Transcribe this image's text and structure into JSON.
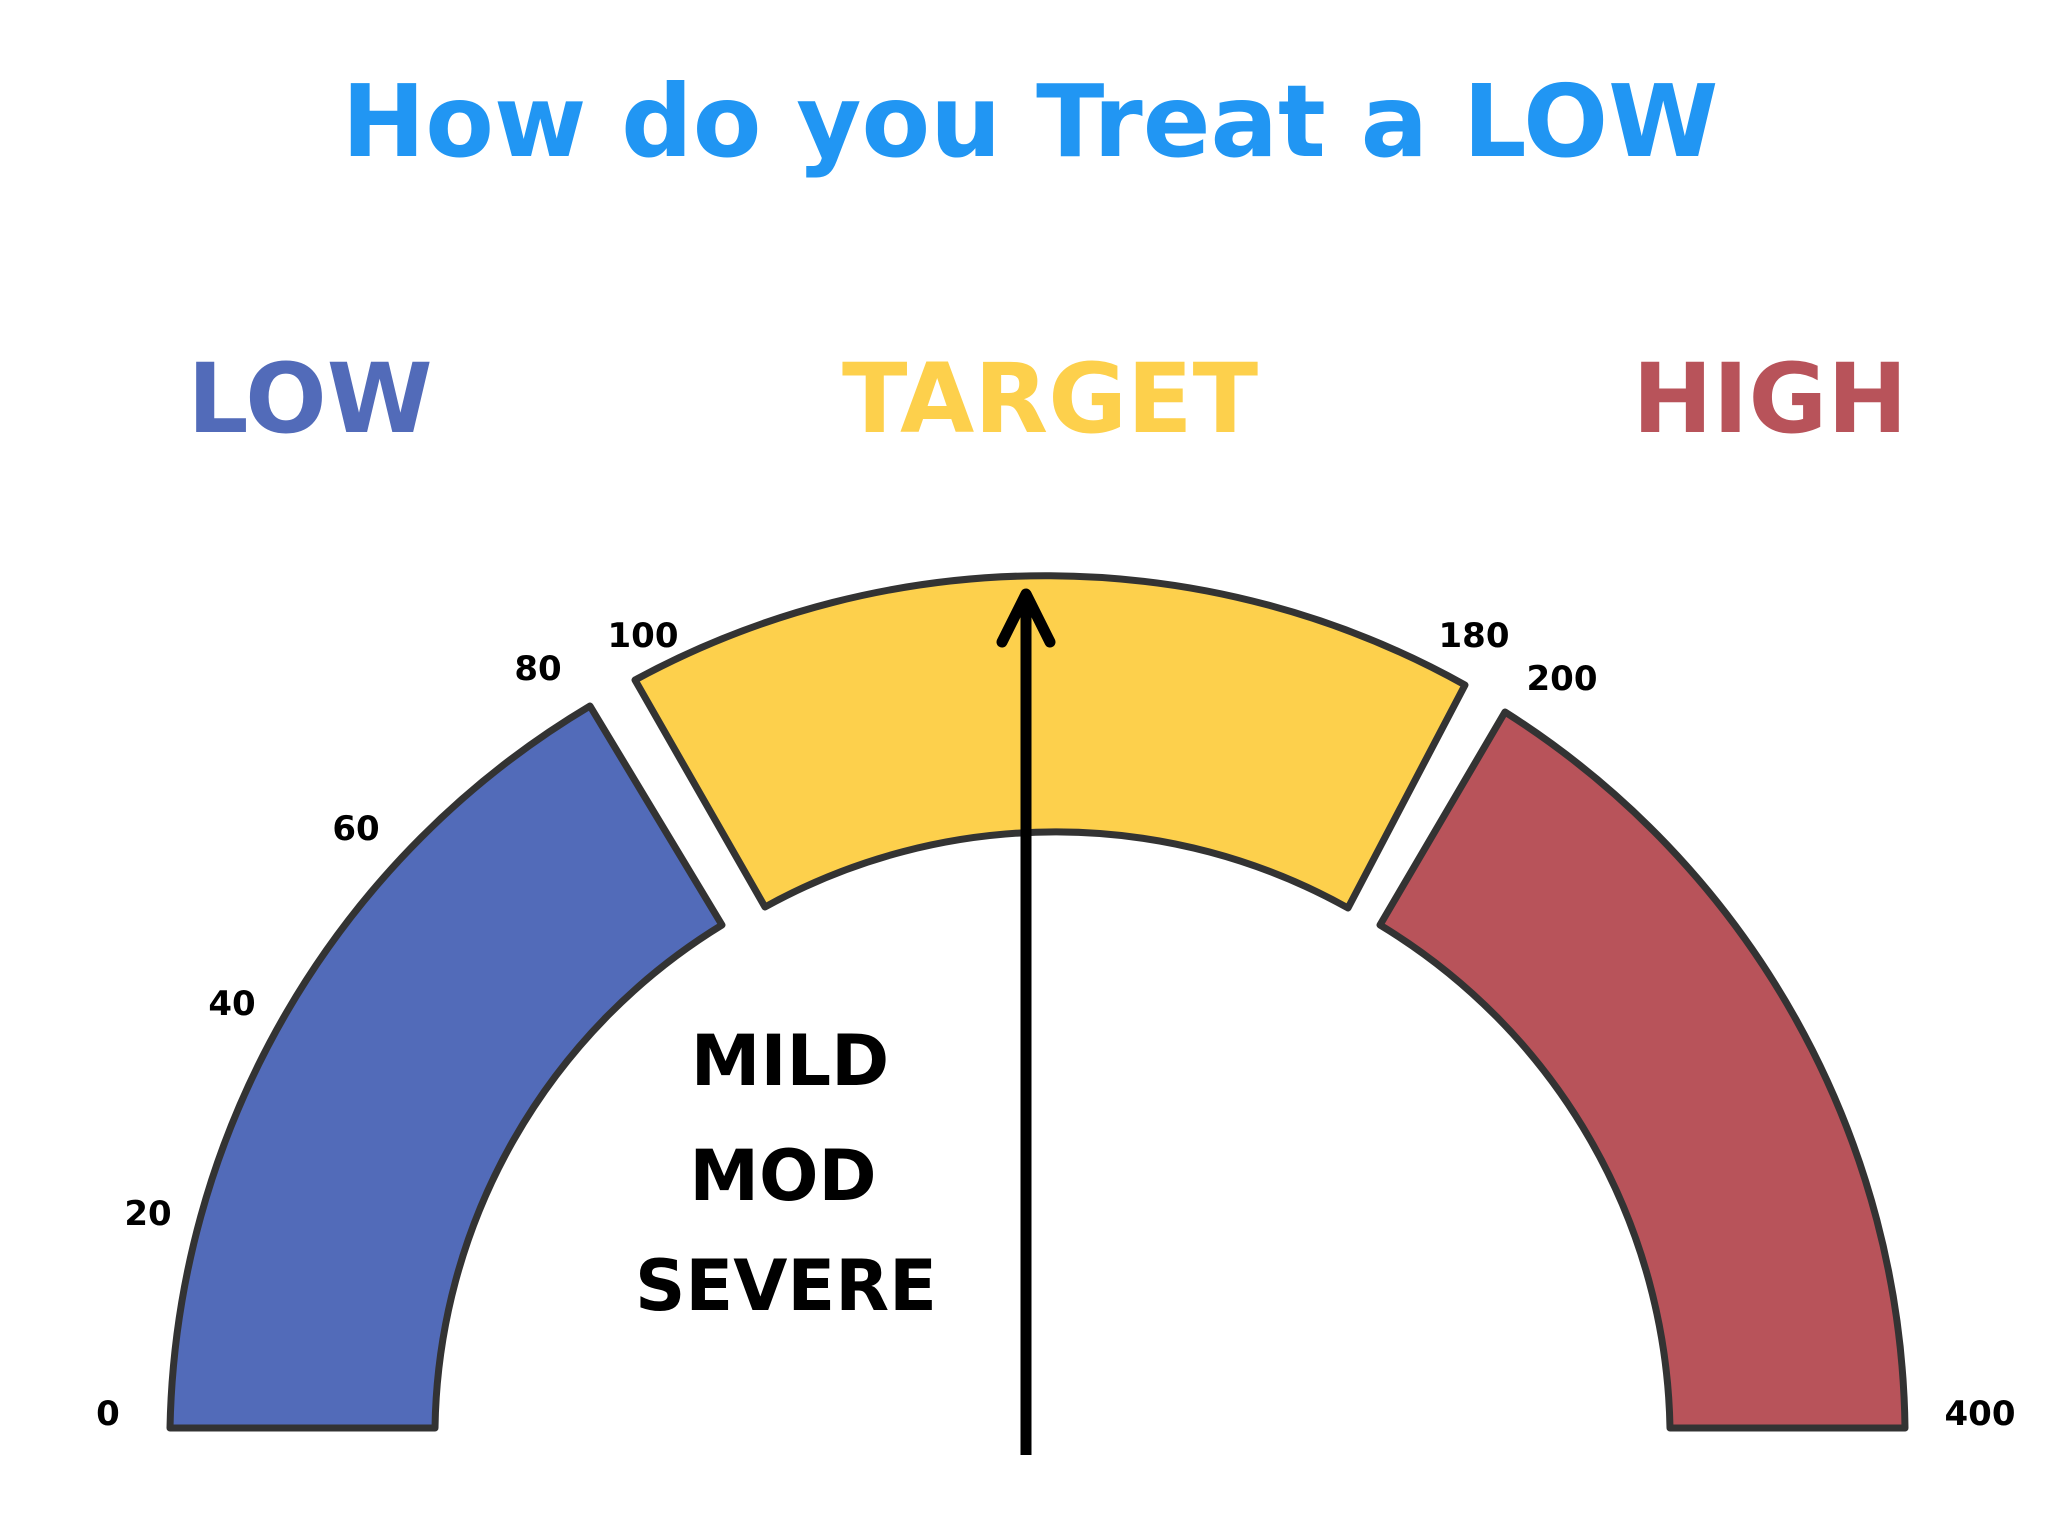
{
  "title": "How do you Treat a LOW",
  "zones": [
    {
      "label": "LOW",
      "color": "#526bb9"
    },
    {
      "label": "TARGET",
      "color": "#fdd04c"
    },
    {
      "label": "HIGH",
      "color": "#b8535a"
    }
  ],
  "ticks": [
    "0",
    "20",
    "40",
    "60",
    "80",
    "100",
    "180",
    "200",
    "400"
  ],
  "severity": [
    "MILD",
    "MOD",
    "SEVERE"
  ],
  "colors": {
    "title": "#2196f3",
    "outline": "#333333",
    "arrow": "#000000"
  }
}
